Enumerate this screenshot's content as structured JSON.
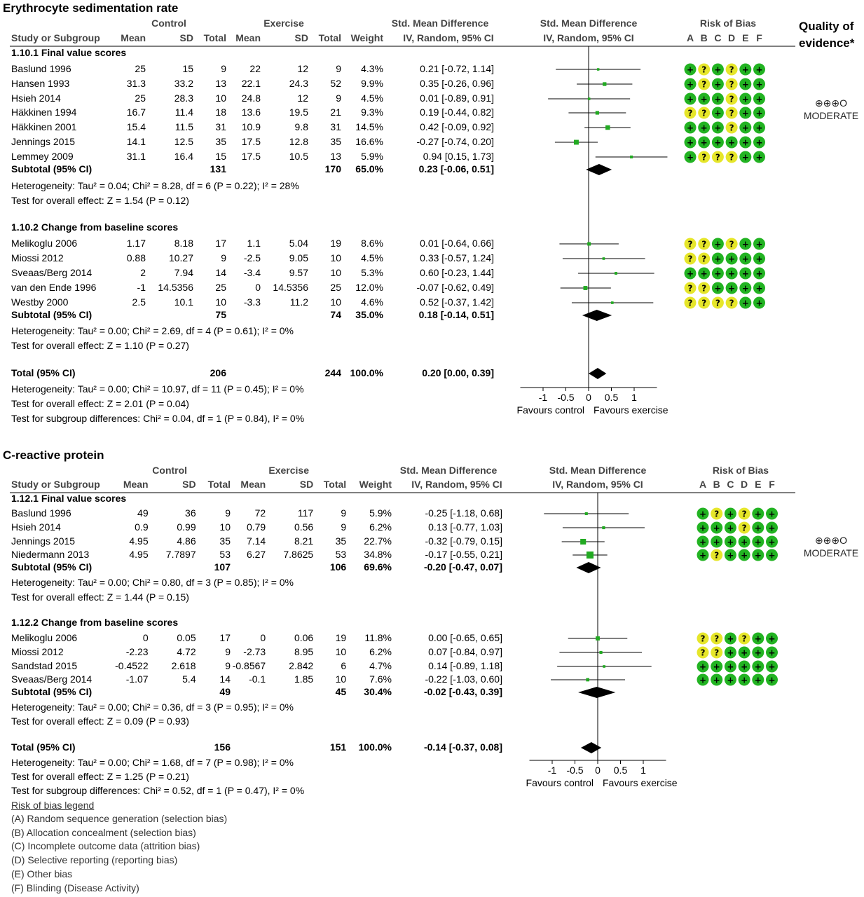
{
  "quality_header": [
    "Quality of",
    "evidence*"
  ],
  "column_headers": {
    "control": "Control",
    "exercise": "Exercise",
    "smd_top": "Std. Mean Difference",
    "smd_sub": "IV, Random, 95% CI",
    "rob": "Risk of Bias",
    "rob_letters": [
      "A",
      "B",
      "C",
      "D",
      "E",
      "F"
    ],
    "study": "Study or Subgroup",
    "mean": "Mean",
    "sd": "SD",
    "total": "Total",
    "weight": "Weight"
  },
  "rob_legend": {
    "title": "Risk of bias legend",
    "items": [
      "(A) Random sequence generation (selection bias)",
      "(B) Allocation concealment (selection bias)",
      "(C) Incomplete outcome data (attrition bias)",
      "(D) Selective reporting (reporting bias)",
      "(E) Other bias",
      "(F) Blinding (Disease Activity)"
    ]
  },
  "colors": {
    "low_risk": "#22b322",
    "unclear_risk": "#e6e62a",
    "marker": "#22aa22"
  },
  "chart_data": [
    {
      "type": "forest",
      "title": "Erythrocyte sedimentation rate",
      "axis": {
        "ticks": [
          -1,
          -0.5,
          0,
          0.5,
          1
        ],
        "tick_labels": [
          "-1",
          "-0.5",
          "0",
          "0.5",
          "1"
        ],
        "range": [
          -1.5,
          1.5
        ],
        "left_label": "Favours control",
        "right_label": "Favours exercise"
      },
      "quality": {
        "symbols": "⊕⊕⊕O",
        "grade": "MODERATE"
      },
      "subgroups": [
        {
          "name": "1.10.1 Final value scores",
          "studies": [
            {
              "study": "Baslund 1996",
              "c_mean": "25",
              "c_sd": "15",
              "c_total": "9",
              "e_mean": "22",
              "e_sd": "12",
              "e_total": "9",
              "weight": "4.3%",
              "ci_text": "0.21 [-0.72, 1.14]",
              "est": 0.21,
              "lo": -0.72,
              "hi": 1.14,
              "rob": [
                "+",
                "?",
                "+",
                "?",
                "+",
                "+"
              ]
            },
            {
              "study": "Hansen 1993",
              "c_mean": "31.3",
              "c_sd": "33.2",
              "c_total": "13",
              "e_mean": "22.1",
              "e_sd": "24.3",
              "e_total": "52",
              "weight": "9.9%",
              "ci_text": "0.35 [-0.26, 0.96]",
              "est": 0.35,
              "lo": -0.26,
              "hi": 0.96,
              "rob": [
                "+",
                "?",
                "+",
                "?",
                "+",
                "+"
              ]
            },
            {
              "study": "Hsieh 2014",
              "c_mean": "25",
              "c_sd": "28.3",
              "c_total": "10",
              "e_mean": "24.8",
              "e_sd": "12",
              "e_total": "9",
              "weight": "4.5%",
              "ci_text": "0.01 [-0.89, 0.91]",
              "est": 0.01,
              "lo": -0.89,
              "hi": 0.91,
              "rob": [
                "+",
                "+",
                "+",
                "?",
                "+",
                "+"
              ]
            },
            {
              "study": "Häkkinen 1994",
              "c_mean": "16.7",
              "c_sd": "11.4",
              "c_total": "18",
              "e_mean": "13.6",
              "e_sd": "19.5",
              "e_total": "21",
              "weight": "9.3%",
              "ci_text": "0.19 [-0.44, 0.82]",
              "est": 0.19,
              "lo": -0.44,
              "hi": 0.82,
              "rob": [
                "?",
                "?",
                "+",
                "?",
                "+",
                "+"
              ]
            },
            {
              "study": "Häkkinen 2001",
              "c_mean": "15.4",
              "c_sd": "11.5",
              "c_total": "31",
              "e_mean": "10.9",
              "e_sd": "9.8",
              "e_total": "31",
              "weight": "14.5%",
              "ci_text": "0.42 [-0.09, 0.92]",
              "est": 0.42,
              "lo": -0.09,
              "hi": 0.92,
              "rob": [
                "+",
                "+",
                "+",
                "?",
                "+",
                "+"
              ]
            },
            {
              "study": "Jennings 2015",
              "c_mean": "14.1",
              "c_sd": "12.5",
              "c_total": "35",
              "e_mean": "17.5",
              "e_sd": "12.8",
              "e_total": "35",
              "weight": "16.6%",
              "ci_text": "-0.27 [-0.74, 0.20]",
              "est": -0.27,
              "lo": -0.74,
              "hi": 0.2,
              "rob": [
                "+",
                "+",
                "+",
                "+",
                "+",
                "+"
              ]
            },
            {
              "study": "Lemmey 2009",
              "c_mean": "31.1",
              "c_sd": "16.4",
              "c_total": "15",
              "e_mean": "17.5",
              "e_sd": "10.5",
              "e_total": "13",
              "weight": "5.9%",
              "ci_text": "0.94 [0.15, 1.73]",
              "est": 0.94,
              "lo": 0.15,
              "hi": 1.73,
              "rob": [
                "+",
                "?",
                "?",
                "?",
                "+",
                "+"
              ]
            }
          ],
          "subtotal": {
            "label": "Subtotal (95% CI)",
            "c_total": "131",
            "e_total": "170",
            "weight": "65.0%",
            "ci_text": "0.23 [-0.06, 0.51]",
            "est": 0.23,
            "lo": -0.06,
            "hi": 0.51
          },
          "heterogeneity": "Heterogeneity: Tau² = 0.04; Chi² = 8.28, df = 6 (P = 0.22); I² = 28%",
          "overall": "Test for overall effect: Z = 1.54 (P = 0.12)"
        },
        {
          "name": "1.10.2 Change from baseline scores",
          "studies": [
            {
              "study": "Melikoglu 2006",
              "c_mean": "1.17",
              "c_sd": "8.18",
              "c_total": "17",
              "e_mean": "1.1",
              "e_sd": "5.04",
              "e_total": "19",
              "weight": "8.6%",
              "ci_text": "0.01 [-0.64, 0.66]",
              "est": 0.01,
              "lo": -0.64,
              "hi": 0.66,
              "rob": [
                "?",
                "?",
                "+",
                "?",
                "+",
                "+"
              ]
            },
            {
              "study": "Miossi 2012",
              "c_mean": "0.88",
              "c_sd": "10.27",
              "c_total": "9",
              "e_mean": "-2.5",
              "e_sd": "9.05",
              "e_total": "10",
              "weight": "4.5%",
              "ci_text": "0.33 [-0.57, 1.24]",
              "est": 0.33,
              "lo": -0.57,
              "hi": 1.24,
              "rob": [
                "?",
                "?",
                "+",
                "+",
                "+",
                "+"
              ]
            },
            {
              "study": "Sveaas/Berg 2014",
              "c_mean": "2",
              "c_sd": "7.94",
              "c_total": "14",
              "e_mean": "-3.4",
              "e_sd": "9.57",
              "e_total": "10",
              "weight": "5.3%",
              "ci_text": "0.60 [-0.23, 1.44]",
              "est": 0.6,
              "lo": -0.23,
              "hi": 1.44,
              "rob": [
                "+",
                "+",
                "+",
                "+",
                "+",
                "+"
              ]
            },
            {
              "study": "van den Ende 1996",
              "c_mean": "-1",
              "c_sd": "14.5356",
              "c_total": "25",
              "e_mean": "0",
              "e_sd": "14.5356",
              "e_total": "25",
              "weight": "12.0%",
              "ci_text": "-0.07 [-0.62, 0.49]",
              "est": -0.07,
              "lo": -0.62,
              "hi": 0.49,
              "rob": [
                "?",
                "?",
                "+",
                "+",
                "+",
                "+"
              ]
            },
            {
              "study": "Westby 2000",
              "c_mean": "2.5",
              "c_sd": "10.1",
              "c_total": "10",
              "e_mean": "-3.3",
              "e_sd": "11.2",
              "e_total": "10",
              "weight": "4.6%",
              "ci_text": "0.52 [-0.37, 1.42]",
              "est": 0.52,
              "lo": -0.37,
              "hi": 1.42,
              "rob": [
                "?",
                "?",
                "?",
                "?",
                "+",
                "+"
              ]
            }
          ],
          "subtotal": {
            "label": "Subtotal (95% CI)",
            "c_total": "75",
            "e_total": "74",
            "weight": "35.0%",
            "ci_text": "0.18 [-0.14, 0.51]",
            "est": 0.18,
            "lo": -0.14,
            "hi": 0.51
          },
          "heterogeneity": "Heterogeneity: Tau² = 0.00; Chi² = 2.69, df = 4 (P = 0.61); I² = 0%",
          "overall": "Test for overall effect: Z = 1.10 (P = 0.27)"
        }
      ],
      "total": {
        "label": "Total (95% CI)",
        "c_total": "206",
        "e_total": "244",
        "weight": "100.0%",
        "ci_text": "0.20 [0.00, 0.39]",
        "est": 0.2,
        "lo": 0.0,
        "hi": 0.39
      },
      "footer": [
        "Heterogeneity: Tau² = 0.00; Chi² = 10.97, df = 11 (P = 0.45); I² = 0%",
        "Test for overall effect: Z = 2.01 (P = 0.04)",
        "Test for subgroup differences: Chi² = 0.04, df = 1 (P = 0.84), I² = 0%"
      ]
    },
    {
      "type": "forest",
      "title": "C-reactive protein",
      "axis": {
        "ticks": [
          -1,
          -0.5,
          0,
          0.5,
          1
        ],
        "tick_labels": [
          "-1",
          "-0.5",
          "0",
          "0.5",
          "1"
        ],
        "range": [
          -1.5,
          1.5
        ],
        "left_label": "Favours control",
        "right_label": "Favours exercise"
      },
      "quality": {
        "symbols": "⊕⊕⊕O",
        "grade": "MODERATE"
      },
      "subgroups": [
        {
          "name": "1.12.1 Final value scores",
          "studies": [
            {
              "study": "Baslund 1996",
              "c_mean": "49",
              "c_sd": "36",
              "c_total": "9",
              "e_mean": "72",
              "e_sd": "117",
              "e_total": "9",
              "weight": "5.9%",
              "ci_text": "-0.25 [-1.18, 0.68]",
              "est": -0.25,
              "lo": -1.18,
              "hi": 0.68,
              "rob": [
                "+",
                "?",
                "+",
                "?",
                "+",
                "+"
              ]
            },
            {
              "study": "Hsieh 2014",
              "c_mean": "0.9",
              "c_sd": "0.99",
              "c_total": "10",
              "e_mean": "0.79",
              "e_sd": "0.56",
              "e_total": "9",
              "weight": "6.2%",
              "ci_text": "0.13 [-0.77, 1.03]",
              "est": 0.13,
              "lo": -0.77,
              "hi": 1.03,
              "rob": [
                "+",
                "+",
                "+",
                "?",
                "+",
                "+"
              ]
            },
            {
              "study": "Jennings 2015",
              "c_mean": "4.95",
              "c_sd": "4.86",
              "c_total": "35",
              "e_mean": "7.14",
              "e_sd": "8.21",
              "e_total": "35",
              "weight": "22.7%",
              "ci_text": "-0.32 [-0.79, 0.15]",
              "est": -0.32,
              "lo": -0.79,
              "hi": 0.15,
              "rob": [
                "+",
                "+",
                "+",
                "+",
                "+",
                "+"
              ]
            },
            {
              "study": "Niedermann 2013",
              "c_mean": "4.95",
              "c_sd": "7.7897",
              "c_total": "53",
              "e_mean": "6.27",
              "e_sd": "7.8625",
              "e_total": "53",
              "weight": "34.8%",
              "ci_text": "-0.17 [-0.55, 0.21]",
              "est": -0.17,
              "lo": -0.55,
              "hi": 0.21,
              "rob": [
                "+",
                "?",
                "+",
                "+",
                "+",
                "+"
              ]
            }
          ],
          "subtotal": {
            "label": "Subtotal (95% CI)",
            "c_total": "107",
            "e_total": "106",
            "weight": "69.6%",
            "ci_text": "-0.20 [-0.47, 0.07]",
            "est": -0.2,
            "lo": -0.47,
            "hi": 0.07
          },
          "heterogeneity": "Heterogeneity: Tau² = 0.00; Chi² = 0.80, df = 3 (P = 0.85); I² = 0%",
          "overall": "Test for overall effect: Z = 1.44 (P = 0.15)"
        },
        {
          "name": "1.12.2 Change from baseline scores",
          "studies": [
            {
              "study": "Melikoglu 2006",
              "c_mean": "0",
              "c_sd": "0.05",
              "c_total": "17",
              "e_mean": "0",
              "e_sd": "0.06",
              "e_total": "19",
              "weight": "11.8%",
              "ci_text": "0.00 [-0.65, 0.65]",
              "est": 0.0,
              "lo": -0.65,
              "hi": 0.65,
              "rob": [
                "?",
                "?",
                "+",
                "?",
                "+",
                "+"
              ]
            },
            {
              "study": "Miossi 2012",
              "c_mean": "-2.23",
              "c_sd": "4.72",
              "c_total": "9",
              "e_mean": "-2.73",
              "e_sd": "8.95",
              "e_total": "10",
              "weight": "6.2%",
              "ci_text": "0.07 [-0.84, 0.97]",
              "est": 0.07,
              "lo": -0.84,
              "hi": 0.97,
              "rob": [
                "?",
                "?",
                "+",
                "+",
                "+",
                "+"
              ]
            },
            {
              "study": "Sandstad 2015",
              "c_mean": "-0.4522",
              "c_sd": "2.618",
              "c_total": "9",
              "e_mean": "-0.8567",
              "e_sd": "2.842",
              "e_total": "6",
              "weight": "4.7%",
              "ci_text": "0.14 [-0.89, 1.18]",
              "est": 0.14,
              "lo": -0.89,
              "hi": 1.18,
              "rob": [
                "+",
                "+",
                "+",
                "+",
                "+",
                "+"
              ]
            },
            {
              "study": "Sveaas/Berg 2014",
              "c_mean": "-1.07",
              "c_sd": "5.4",
              "c_total": "14",
              "e_mean": "-0.1",
              "e_sd": "1.85",
              "e_total": "10",
              "weight": "7.6%",
              "ci_text": "-0.22 [-1.03, 0.60]",
              "est": -0.22,
              "lo": -1.03,
              "hi": 0.6,
              "rob": [
                "+",
                "+",
                "+",
                "+",
                "+",
                "+"
              ]
            }
          ],
          "subtotal": {
            "label": "Subtotal (95% CI)",
            "c_total": "49",
            "e_total": "45",
            "weight": "30.4%",
            "ci_text": "-0.02 [-0.43, 0.39]",
            "est": -0.02,
            "lo": -0.43,
            "hi": 0.39
          },
          "heterogeneity": "Heterogeneity: Tau² = 0.00; Chi² = 0.36, df = 3 (P = 0.95); I² = 0%",
          "overall": "Test for overall effect: Z = 0.09 (P = 0.93)"
        }
      ],
      "total": {
        "label": "Total (95% CI)",
        "c_total": "156",
        "e_total": "151",
        "weight": "100.0%",
        "ci_text": "-0.14 [-0.37, 0.08]",
        "est": -0.14,
        "lo": -0.37,
        "hi": 0.08
      },
      "footer": [
        "Heterogeneity: Tau² = 0.00; Chi² = 1.68, df = 7 (P = 0.98); I² = 0%",
        "Test for overall effect: Z = 1.25 (P = 0.21)",
        "Test for subgroup differences: Chi² = 0.52, df = 1 (P = 0.47), I² = 0%"
      ]
    }
  ]
}
